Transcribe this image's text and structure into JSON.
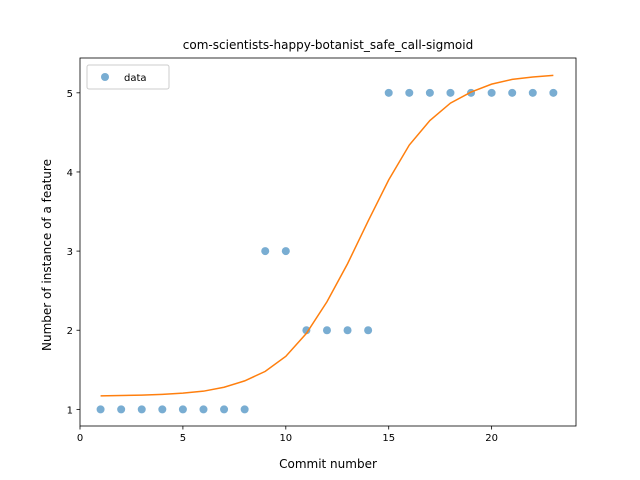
{
  "chart_data": {
    "type": "scatter",
    "title": "com-scientists-happy-botanist_safe_call-sigmoid",
    "xlabel": "Commit number",
    "ylabel": "Number of instance of a feature",
    "xlim": [
      0.0,
      24.1
    ],
    "ylim": [
      0.79,
      5.44
    ],
    "xticks": [
      0,
      5,
      10,
      15,
      20
    ],
    "yticks": [
      1,
      2,
      3,
      4,
      5
    ],
    "grid": false,
    "legend": {
      "position": "top-left",
      "entries": [
        "data"
      ]
    },
    "series": [
      {
        "name": "data",
        "kind": "scatter",
        "color": "#1f77b4",
        "x": [
          1,
          2,
          3,
          4,
          5,
          6,
          7,
          8,
          9,
          10,
          11,
          12,
          13,
          14,
          15,
          16,
          17,
          18,
          19,
          20,
          21,
          22,
          23
        ],
        "y": [
          1,
          1,
          1,
          1,
          1,
          1,
          1,
          1,
          3,
          3,
          2,
          2,
          2,
          2,
          5,
          5,
          5,
          5,
          5,
          5,
          5,
          5,
          5
        ]
      },
      {
        "kind": "line",
        "color": "#ff7f0e",
        "x": [
          1,
          2,
          3,
          4,
          5,
          6,
          7,
          8,
          9,
          10,
          11,
          12,
          13,
          14,
          15,
          16,
          17,
          18,
          19,
          20,
          21,
          22,
          23
        ],
        "y": [
          1.17,
          1.175,
          1.18,
          1.19,
          1.205,
          1.23,
          1.28,
          1.36,
          1.48,
          1.67,
          1.96,
          2.36,
          2.84,
          3.38,
          3.9,
          4.34,
          4.65,
          4.87,
          5.01,
          5.11,
          5.17,
          5.2,
          5.22
        ]
      }
    ]
  }
}
